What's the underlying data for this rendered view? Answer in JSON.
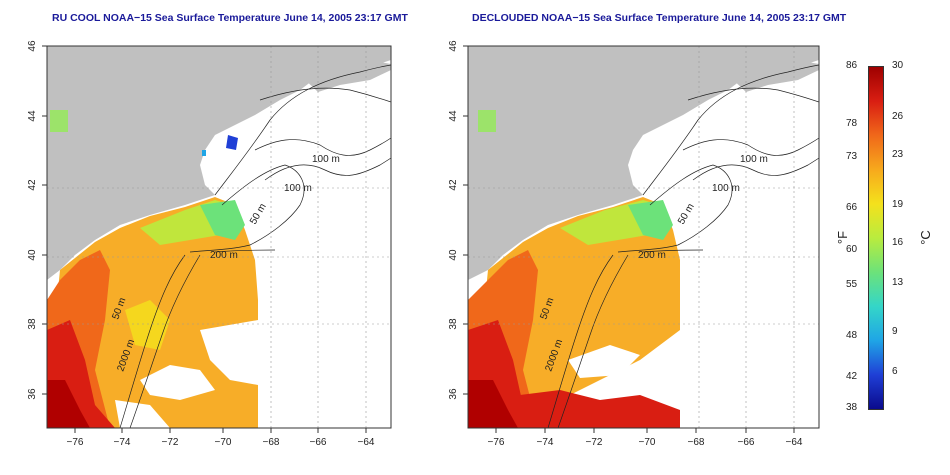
{
  "titles": {
    "left": "RU COOL NOAA−15 Sea Surface Temperature June 14, 2005 23:17 GMT",
    "right": "DECLOUDED NOAA−15 Sea Surface Temperature June 14, 2005 23:17 GMT"
  },
  "map": {
    "x_ticks": [
      "−76",
      "−74",
      "−72",
      "−70",
      "−68",
      "−66",
      "−64"
    ],
    "y_ticks": [
      "46",
      "44",
      "42",
      "40",
      "38",
      "36"
    ],
    "contour_labels": [
      "100 m",
      "100 m",
      "50 m",
      "200 m",
      "50 m",
      "2000 m"
    ],
    "colors": {
      "land": "#c0c0c0",
      "ocean_bg": "#ffffff",
      "contour": "#222222"
    }
  },
  "colorbar": {
    "fahrenheit_labels": [
      "86",
      "78",
      "73",
      "66",
      "60",
      "55",
      "48",
      "42",
      "38"
    ],
    "celsius_labels": [
      "30",
      "26",
      "23",
      "19",
      "16",
      "13",
      "9",
      "6"
    ],
    "left_unit": "°F",
    "right_unit": "°C",
    "colors": [
      "#0a0a8c",
      "#1f3fd6",
      "#1fa5e6",
      "#34d6c8",
      "#6ce27a",
      "#b9ec3e",
      "#f4e11c",
      "#f7a91c",
      "#f0681a",
      "#d91e12",
      "#9e0000"
    ]
  }
}
